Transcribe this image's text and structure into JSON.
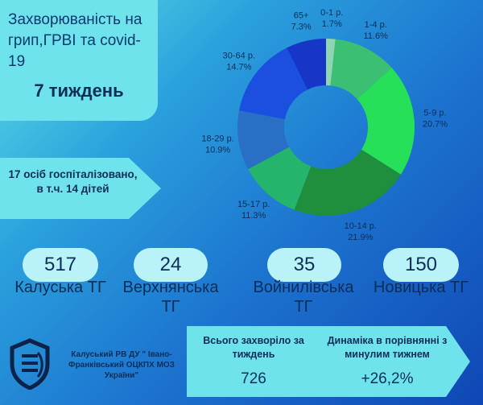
{
  "header": {
    "title": "Захворюваність на грип,ГРВІ та covid-19",
    "week": "7 тиждень"
  },
  "hospitalized": "17 осіб госпіталізовано, в т.ч. 14 дітей",
  "chart_data": {
    "type": "pie",
    "categories": [
      "0-1 р.",
      "1-4 р.",
      "5-9 р.",
      "10-14 р.",
      "15-17 р.",
      "18-29 р.",
      "30-64 р.",
      "65+"
    ],
    "values": [
      1.7,
      11.6,
      20.7,
      21.9,
      11.3,
      10.9,
      14.7,
      7.3
    ],
    "labels": [
      "1.7%",
      "11.6%",
      "20.7%",
      "21.9%",
      "11.3%",
      "10.9%",
      "14.7%",
      "7.3%"
    ],
    "colors": [
      "#8fd6b0",
      "#3bbf72",
      "#27e05a",
      "#1f8f3e",
      "#24b56a",
      "#2a6fc6",
      "#1a4fe0",
      "#1636c8"
    ],
    "style": "donut"
  },
  "communities": [
    {
      "value": "517",
      "name": "Калуська ТГ"
    },
    {
      "value": "24",
      "name": "Верхнянська ТГ"
    },
    {
      "value": "35",
      "name": "Войнилівська ТГ"
    },
    {
      "value": "150",
      "name": "Новицька ТГ"
    }
  ],
  "org": "Калуський РВ ДУ \" Івано-Франківський ОЦКПХ МОЗ України\"",
  "summary": {
    "total_label": "Всього захворіло за тиждень",
    "total_value": "726",
    "dynamics_label": "Динаміка в порівнянні з минулим тижнем",
    "dynamics_value": "+26,2%"
  }
}
